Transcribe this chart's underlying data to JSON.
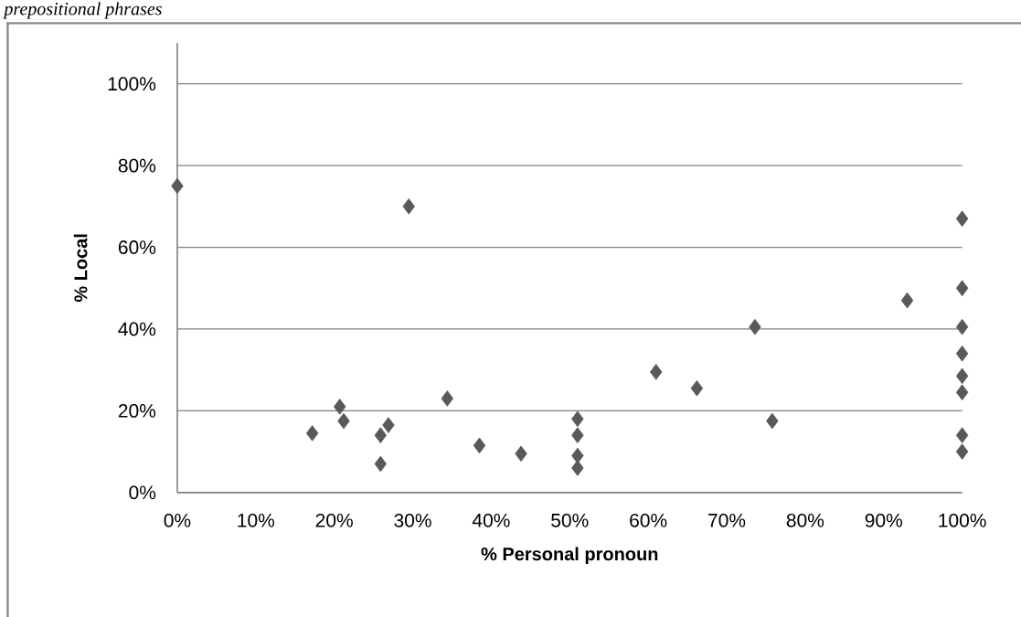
{
  "chart_data": {
    "type": "scatter",
    "xlabel": "% Personal pronoun",
    "ylabel": "% Local",
    "annotations": [
      "prepositional phrases"
    ],
    "x": [
      0,
      29.5,
      17.2,
      20.7,
      21.2,
      25.9,
      26.9,
      25.9,
      34.4,
      38.5,
      43.8,
      51,
      51,
      51,
      51,
      61,
      66.2,
      73.6,
      75.8,
      93,
      100,
      100,
      100,
      100,
      100,
      100,
      100,
      100
    ],
    "values": [
      75,
      70,
      14.5,
      21,
      17.5,
      14,
      16.5,
      7,
      23,
      11.5,
      9.5,
      18,
      14,
      9,
      6,
      29.5,
      25.5,
      40.5,
      17.5,
      47,
      67,
      50,
      40.5,
      34,
      28.5,
      24.5,
      14,
      10
    ],
    "color": "#595959",
    "marker": "diamond",
    "grid": "y",
    "xlim": [
      0,
      100
    ],
    "ylim": [
      0,
      110
    ],
    "xticks": [
      {
        "value": 0,
        "label": "0%"
      },
      {
        "value": 10,
        "label": "10%"
      },
      {
        "value": 20,
        "label": "20%"
      },
      {
        "value": 30,
        "label": "30%"
      },
      {
        "value": 40,
        "label": "40%"
      },
      {
        "value": 50,
        "label": "50%"
      },
      {
        "value": 60,
        "label": "60%"
      },
      {
        "value": 70,
        "label": "70%"
      },
      {
        "value": 80,
        "label": "80%"
      },
      {
        "value": 90,
        "label": "90%"
      },
      {
        "value": 100,
        "label": "100%"
      }
    ],
    "yticks": [
      {
        "value": 0,
        "label": "0%"
      },
      {
        "value": 20,
        "label": "20%"
      },
      {
        "value": 40,
        "label": "40%"
      },
      {
        "value": 60,
        "label": "60%"
      },
      {
        "value": 80,
        "label": "80%"
      },
      {
        "value": 100,
        "label": "100%"
      }
    ]
  }
}
